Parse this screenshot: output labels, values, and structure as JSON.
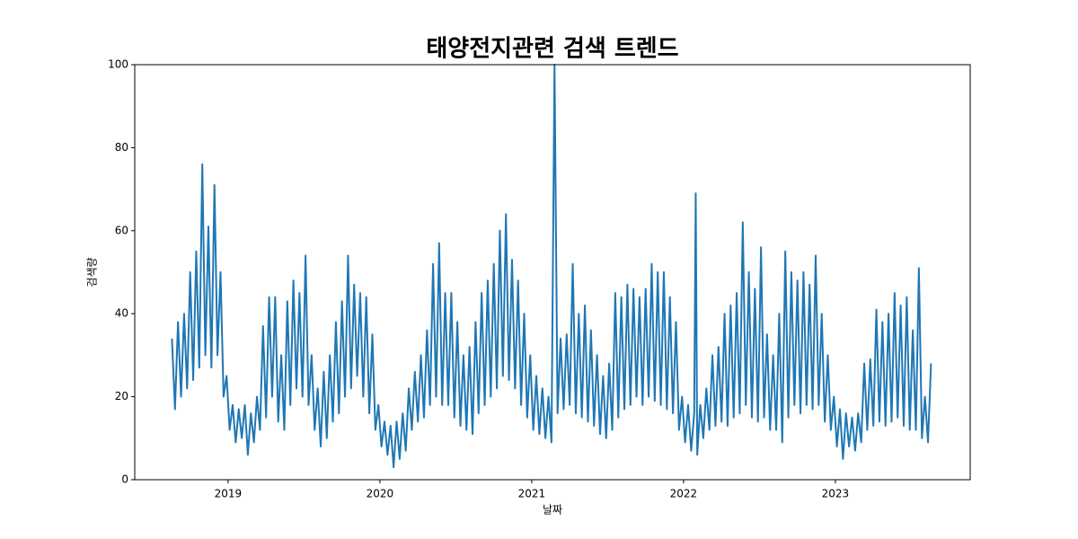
{
  "chart_data": {
    "type": "line",
    "title": "태양전지관련 검색 트렌드",
    "x_label": "날짜",
    "y_label": "검색량",
    "xlim": [
      2018.385,
      2023.888
    ],
    "ylim": [
      0,
      100
    ],
    "xticks": [
      2019,
      2020,
      2021,
      2022,
      2023
    ],
    "yticks": [
      0,
      20,
      40,
      60,
      80,
      100
    ],
    "series": [
      {
        "color": "#1f77b4",
        "x": [
          2018.63,
          2018.65,
          2018.67,
          2018.69,
          2018.71,
          2018.73,
          2018.75,
          2018.77,
          2018.79,
          2018.81,
          2018.83,
          2018.85,
          2018.87,
          2018.89,
          2018.91,
          2018.93,
          2018.95,
          2018.97,
          2018.99,
          2019.01,
          2019.03,
          2019.05,
          2019.07,
          2019.09,
          2019.11,
          2019.13,
          2019.15,
          2019.17,
          2019.19,
          2019.21,
          2019.23,
          2019.25,
          2019.27,
          2019.29,
          2019.31,
          2019.33,
          2019.35,
          2019.37,
          2019.39,
          2019.41,
          2019.43,
          2019.45,
          2019.47,
          2019.49,
          2019.51,
          2019.53,
          2019.55,
          2019.57,
          2019.59,
          2019.61,
          2019.63,
          2019.65,
          2019.67,
          2019.69,
          2019.71,
          2019.73,
          2019.75,
          2019.77,
          2019.79,
          2019.81,
          2019.83,
          2019.85,
          2019.87,
          2019.89,
          2019.91,
          2019.93,
          2019.95,
          2019.97,
          2019.99,
          2020.01,
          2020.03,
          2020.05,
          2020.07,
          2020.09,
          2020.11,
          2020.13,
          2020.15,
          2020.17,
          2020.19,
          2020.21,
          2020.23,
          2020.25,
          2020.27,
          2020.29,
          2020.31,
          2020.33,
          2020.35,
          2020.37,
          2020.39,
          2020.41,
          2020.43,
          2020.45,
          2020.47,
          2020.49,
          2020.51,
          2020.53,
          2020.55,
          2020.57,
          2020.59,
          2020.61,
          2020.63,
          2020.65,
          2020.67,
          2020.69,
          2020.71,
          2020.73,
          2020.75,
          2020.77,
          2020.79,
          2020.81,
          2020.83,
          2020.85,
          2020.87,
          2020.89,
          2020.91,
          2020.93,
          2020.95,
          2020.97,
          2020.99,
          2021.01,
          2021.03,
          2021.05,
          2021.07,
          2021.09,
          2021.11,
          2021.13,
          2021.15,
          2021.17,
          2021.19,
          2021.21,
          2021.23,
          2021.25,
          2021.27,
          2021.29,
          2021.31,
          2021.33,
          2021.35,
          2021.37,
          2021.39,
          2021.41,
          2021.43,
          2021.45,
          2021.47,
          2021.49,
          2021.51,
          2021.53,
          2021.55,
          2021.57,
          2021.59,
          2021.61,
          2021.63,
          2021.65,
          2021.67,
          2021.69,
          2021.71,
          2021.73,
          2021.75,
          2021.77,
          2021.79,
          2021.81,
          2021.83,
          2021.85,
          2021.87,
          2021.89,
          2021.91,
          2021.93,
          2021.95,
          2021.97,
          2021.99,
          2022.01,
          2022.03,
          2022.05,
          2022.07,
          2022.08,
          2022.09,
          2022.11,
          2022.13,
          2022.15,
          2022.17,
          2022.19,
          2022.21,
          2022.23,
          2022.25,
          2022.27,
          2022.29,
          2022.31,
          2022.33,
          2022.35,
          2022.37,
          2022.39,
          2022.41,
          2022.43,
          2022.45,
          2022.47,
          2022.49,
          2022.51,
          2022.53,
          2022.55,
          2022.57,
          2022.59,
          2022.61,
          2022.63,
          2022.65,
          2022.67,
          2022.69,
          2022.71,
          2022.73,
          2022.75,
          2022.77,
          2022.79,
          2022.81,
          2022.83,
          2022.85,
          2022.87,
          2022.89,
          2022.91,
          2022.93,
          2022.95,
          2022.97,
          2022.99,
          2023.01,
          2023.03,
          2023.05,
          2023.07,
          2023.09,
          2023.11,
          2023.13,
          2023.15,
          2023.17,
          2023.19,
          2023.21,
          2023.23,
          2023.25,
          2023.27,
          2023.29,
          2023.31,
          2023.33,
          2023.35,
          2023.37,
          2023.39,
          2023.41,
          2023.43,
          2023.45,
          2023.47,
          2023.49,
          2023.51,
          2023.53,
          2023.55,
          2023.57,
          2023.59,
          2023.61,
          2023.63
        ],
        "values": [
          34,
          17,
          38,
          20,
          40,
          22,
          50,
          24,
          55,
          27,
          76,
          30,
          61,
          27,
          71,
          30,
          50,
          20,
          25,
          12,
          18,
          9,
          17,
          10,
          18,
          6,
          16,
          9,
          20,
          12,
          37,
          15,
          44,
          20,
          44,
          14,
          30,
          12,
          43,
          18,
          48,
          22,
          45,
          20,
          54,
          18,
          30,
          12,
          22,
          8,
          26,
          10,
          30,
          14,
          38,
          16,
          43,
          20,
          54,
          22,
          47,
          25,
          45,
          20,
          44,
          16,
          35,
          12,
          18,
          8,
          14,
          6,
          13,
          3,
          14,
          5,
          16,
          7,
          22,
          12,
          26,
          14,
          30,
          15,
          36,
          18,
          52,
          20,
          57,
          18,
          45,
          18,
          45,
          15,
          38,
          13,
          30,
          12,
          32,
          11,
          38,
          16,
          45,
          18,
          48,
          20,
          52,
          22,
          60,
          25,
          64,
          24,
          53,
          22,
          48,
          18,
          40,
          15,
          30,
          12,
          25,
          11,
          22,
          10,
          20,
          9,
          100,
          16,
          34,
          17,
          35,
          18,
          52,
          16,
          40,
          15,
          42,
          14,
          36,
          13,
          30,
          11,
          25,
          10,
          28,
          12,
          45,
          15,
          44,
          17,
          47,
          18,
          46,
          20,
          44,
          18,
          46,
          20,
          52,
          19,
          50,
          18,
          50,
          17,
          44,
          16,
          38,
          12,
          20,
          9,
          18,
          7,
          16,
          69,
          6,
          18,
          10,
          22,
          12,
          30,
          13,
          32,
          14,
          40,
          13,
          42,
          15,
          45,
          16,
          62,
          18,
          50,
          15,
          46,
          14,
          56,
          15,
          35,
          12,
          30,
          12,
          40,
          9,
          55,
          15,
          50,
          18,
          48,
          16,
          50,
          18,
          47,
          17,
          54,
          18,
          40,
          14,
          30,
          12,
          20,
          8,
          17,
          5,
          16,
          8,
          15,
          7,
          16,
          9,
          28,
          12,
          29,
          13,
          41,
          14,
          38,
          13,
          40,
          14,
          45,
          15,
          42,
          13,
          44,
          12,
          36,
          12,
          51,
          10,
          20,
          9,
          28
        ]
      }
    ]
  }
}
